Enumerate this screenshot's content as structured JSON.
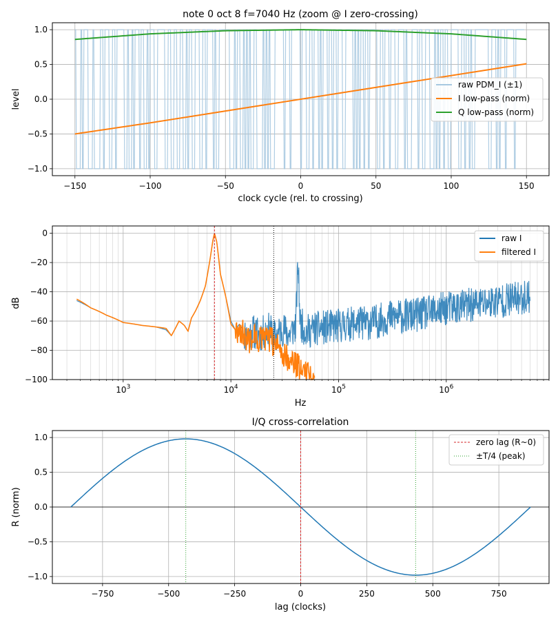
{
  "chart_data": [
    {
      "type": "line",
      "title": "note 0 oct 8  f=7040 Hz  (zoom @ I zero-crossing)",
      "xlabel": "clock cycle (rel. to crossing)",
      "ylabel": "level",
      "xlim": [
        -165,
        165
      ],
      "ylim": [
        -1.1,
        1.1
      ],
      "xticks": [
        -150,
        -100,
        -50,
        0,
        50,
        100,
        150
      ],
      "xtick_labels": [
        "−150",
        "−100",
        "−50",
        "0",
        "50",
        "100",
        "150"
      ],
      "yticks": [
        1.0,
        0.5,
        0.0,
        -0.5,
        -1.0
      ],
      "ytick_labels": [
        "1.0",
        "0.5",
        "0.0",
        "−0.5",
        "−1.0"
      ],
      "grid": true,
      "legend_position": "center-right",
      "colors": {
        "raw": "#a6c8e0",
        "I": "#ff7f0e",
        "Q": "#2ca02c"
      },
      "series": [
        {
          "name": "raw PDM_I (±1)",
          "kind": "pdm",
          "x_range": [
            -150,
            148
          ],
          "levels": [
            -1,
            1
          ],
          "density_of_high": "about 0.5 at x=-150, increasing to about 0.75 at x=150"
        },
        {
          "name": "I low-pass (norm)",
          "x": [
            -150,
            -100,
            -50,
            0,
            50,
            100,
            150
          ],
          "y": [
            -0.5,
            -0.34,
            -0.17,
            0.0,
            0.17,
            0.34,
            0.51
          ]
        },
        {
          "name": "Q low-pass (norm)",
          "x": [
            -150,
            -100,
            -50,
            0,
            50,
            100,
            150
          ],
          "y": [
            0.86,
            0.94,
            0.985,
            1.0,
            0.985,
            0.94,
            0.86
          ]
        }
      ]
    },
    {
      "type": "line",
      "title": "",
      "xlabel": "Hz",
      "ylabel": "dB",
      "xscale": "log",
      "xlim": [
        220,
        9000000
      ],
      "ylim": [
        -100,
        5
      ],
      "xticks": [
        1000,
        10000,
        100000,
        1000000
      ],
      "xtick_labels": [
        "10",
        "10",
        "10",
        "10"
      ],
      "xtick_exponents": [
        "3",
        "4",
        "5",
        "6"
      ],
      "yticks": [
        0,
        -20,
        -40,
        -60,
        -80,
        -100
      ],
      "ytick_labels": [
        "0",
        "−20",
        "−40",
        "−60",
        "−80",
        "−100"
      ],
      "grid": true,
      "legend_position": "top-right",
      "reference_lines": [
        {
          "x": 7040,
          "color": "#d62728",
          "style": "dashed"
        },
        {
          "x": 25000,
          "color": "#000000",
          "style": "dotted"
        }
      ],
      "colors": {
        "raw": "#1f77b4",
        "filtered": "#ff7f0e"
      },
      "series": [
        {
          "name": "raw I",
          "x": [
            370,
            500,
            700,
            1000,
            1500,
            2000,
            2500,
            2800,
            3000,
            3300,
            3700,
            4000,
            4300,
            4700,
            5200,
            5800,
            6400,
            6800,
            7040,
            7400,
            8000,
            9000,
            10000,
            11000,
            12000,
            14000,
            16000,
            19000,
            22000,
            26000,
            30000,
            35000,
            40000,
            42000,
            44000,
            50000,
            60000,
            80000,
            100000,
            150000,
            200000,
            300000,
            500000,
            800000,
            1000000,
            2000000,
            3000000,
            5000000,
            6000000
          ],
          "y": [
            -46,
            -51,
            -56,
            -61,
            -63,
            -64,
            -66,
            -70,
            -66,
            -60,
            -63,
            -67,
            -58,
            -53,
            -46,
            -36,
            -18,
            -5,
            0,
            -6,
            -28,
            -44,
            -60,
            -66,
            -62,
            -70,
            -66,
            -68,
            -64,
            -70,
            -64,
            -68,
            -62,
            -18,
            -60,
            -66,
            -64,
            -63,
            -62,
            -60,
            -60,
            -56,
            -55,
            -52,
            -50,
            -47,
            -45,
            -43,
            -41
          ],
          "noise_band_dB": 12,
          "noise_from_hz": 13000
        },
        {
          "name": "filtered I",
          "x": [
            370,
            500,
            700,
            1000,
            1500,
            2000,
            2500,
            2800,
            3000,
            3300,
            3700,
            4000,
            4300,
            4700,
            5200,
            5800,
            6400,
            6800,
            7040,
            7400,
            8000,
            9000,
            10000,
            11000,
            12000,
            14000,
            16000,
            19000,
            22000,
            26000,
            30000,
            35000,
            40000,
            45000,
            50000,
            55000,
            60000
          ],
          "y": [
            -45,
            -51,
            -56,
            -61,
            -63,
            -64,
            -65,
            -70,
            -66,
            -60,
            -63,
            -67,
            -58,
            -53,
            -46,
            -36,
            -18,
            -5,
            0,
            -6,
            -28,
            -44,
            -62,
            -66,
            -64,
            -72,
            -70,
            -72,
            -72,
            -74,
            -80,
            -85,
            -88,
            -92,
            -90,
            -96,
            -100
          ],
          "noise_band_dB": 10,
          "noise_from_hz": 11000
        }
      ]
    },
    {
      "type": "line",
      "title": "I/Q cross-correlation",
      "xlabel": "lag (clocks)",
      "ylabel": "R (norm)",
      "xlim": [
        -940,
        940
      ],
      "ylim": [
        -1.1,
        1.1
      ],
      "xticks": [
        -750,
        -500,
        -250,
        0,
        250,
        500,
        750
      ],
      "xtick_labels": [
        "−750",
        "−500",
        "−250",
        "0",
        "250",
        "500",
        "750"
      ],
      "yticks": [
        1.0,
        0.5,
        0.0,
        -0.5,
        -1.0
      ],
      "ytick_labels": [
        "1.0",
        "0.5",
        "0.0",
        "−0.5",
        "−1.0"
      ],
      "grid": true,
      "legend_position": "top-right",
      "zero_line_y": 0,
      "colors": {
        "R": "#1f77b4",
        "zero": "#d62728",
        "quarter": "#2ca02c"
      },
      "series": [
        {
          "name": "",
          "x_range": [
            -870,
            870
          ],
          "amplitude": 0.98,
          "period_clocks": 1740,
          "shape": "-sin"
        }
      ],
      "reference_lines": [
        {
          "name": "zero lag (R~0)",
          "x": 0,
          "color": "#d62728",
          "style": "dashed"
        },
        {
          "name": "±T/4 (peak)",
          "x": [
            -435,
            435
          ],
          "color": "#2ca02c",
          "style": "dotted"
        }
      ]
    }
  ]
}
